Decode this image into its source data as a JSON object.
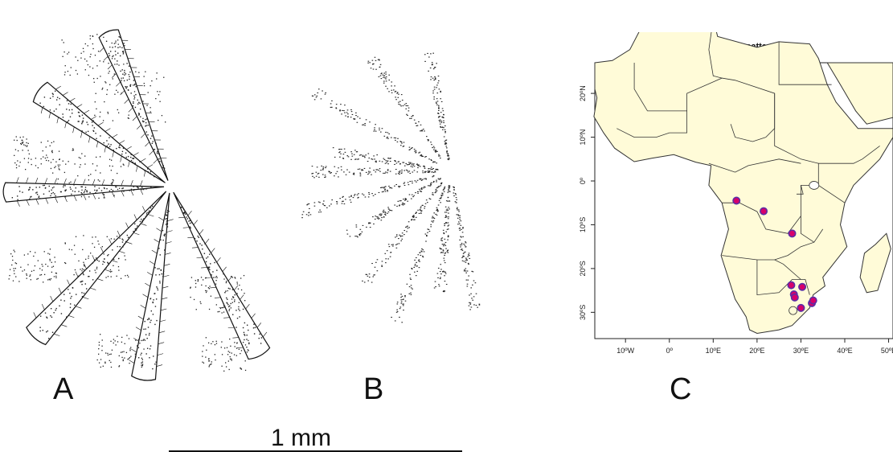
{
  "panels": {
    "a": {
      "label": "A"
    },
    "b": {
      "label": "B"
    },
    "c": {
      "label": "C"
    }
  },
  "scale_bar": {
    "text": "1 mm"
  },
  "map": {
    "title": "bilobatus valve pattern",
    "land_color": "#fffbd8",
    "sea_color": "#ffffff",
    "border_color": "#333333",
    "point_fill": "#d6006b",
    "point_edge": "#5a2ea6",
    "lon_ticks": [
      "10ºW",
      "0º",
      "10ºE",
      "20ºE",
      "30ºE",
      "40ºE",
      "50ºE"
    ],
    "lat_ticks": [
      "20ºN",
      "10ºN",
      "0º",
      "10ºS",
      "20ºS",
      "30ºS"
    ]
  },
  "chart_data": {
    "type": "scatter",
    "title": "bilobatus valve pattern",
    "xlabel": "",
    "ylabel": "",
    "xlim": [
      -17,
      51
    ],
    "ylim": [
      -36,
      27
    ],
    "x": [
      15.3,
      21.5,
      28.0,
      27.8,
      30.3,
      28.4,
      28.6,
      32.5,
      30.0,
      32.8
    ],
    "y": [
      -4.5,
      -6.9,
      -12.0,
      -23.8,
      -24.2,
      -25.9,
      -26.6,
      -27.9,
      -29.0,
      -27.3
    ]
  }
}
